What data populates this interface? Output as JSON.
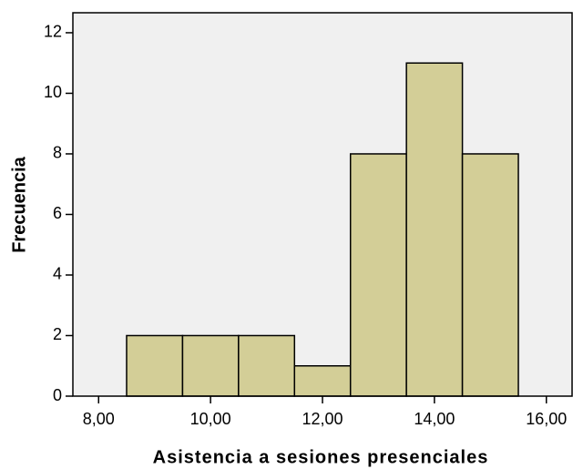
{
  "chart_data": {
    "type": "histogram",
    "xlabel": "Asistencia a sesiones presenciales",
    "ylabel": "Frecuencia",
    "bins": [
      8.5,
      9.5,
      10.5,
      11.5,
      12.5,
      13.5,
      14.5,
      15.5
    ],
    "counts": [
      2,
      2,
      2,
      1,
      8,
      11,
      8
    ],
    "color": "#d3ce97",
    "xlim": [
      7.54,
      16.46
    ],
    "xticks": [
      {
        "value": 8,
        "label": "8,00"
      },
      {
        "value": 10,
        "label": "10,00"
      },
      {
        "value": 12,
        "label": "12,00"
      },
      {
        "value": 14,
        "label": "14,00"
      },
      {
        "value": 16,
        "label": "16,00"
      }
    ],
    "ylim": [
      0,
      12.66
    ],
    "yticks": [
      0,
      2,
      4,
      6,
      8,
      10,
      12
    ]
  }
}
